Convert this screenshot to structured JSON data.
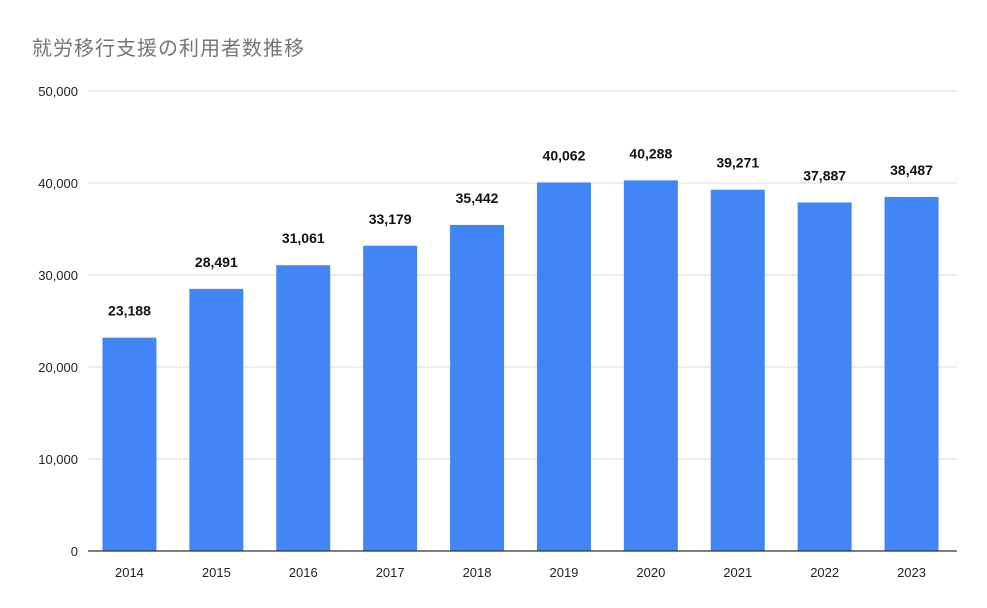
{
  "chart_data": {
    "type": "bar",
    "title": "就労移行支援の利用者数推移",
    "categories": [
      "2014",
      "2015",
      "2016",
      "2017",
      "2018",
      "2019",
      "2020",
      "2021",
      "2022",
      "2023"
    ],
    "values": [
      23188,
      28491,
      31061,
      33179,
      35442,
      40062,
      40288,
      39271,
      37887,
      38487
    ],
    "value_labels": [
      "23,188",
      "28,491",
      "31,061",
      "33,179",
      "35,442",
      "40,062",
      "40,288",
      "39,271",
      "37,887",
      "38,487"
    ],
    "ylim": [
      0,
      50000
    ],
    "yticks": [
      0,
      10000,
      20000,
      30000,
      40000,
      50000
    ],
    "ytick_labels": [
      "0",
      "10,000",
      "20,000",
      "30,000",
      "40,000",
      "50,000"
    ],
    "xlabel": "",
    "ylabel": "",
    "grid": true,
    "legend": false,
    "colors": {
      "bar": "#4285f4",
      "grid": "#d9d9d9",
      "axis": "#333333",
      "title": "#757575"
    }
  }
}
